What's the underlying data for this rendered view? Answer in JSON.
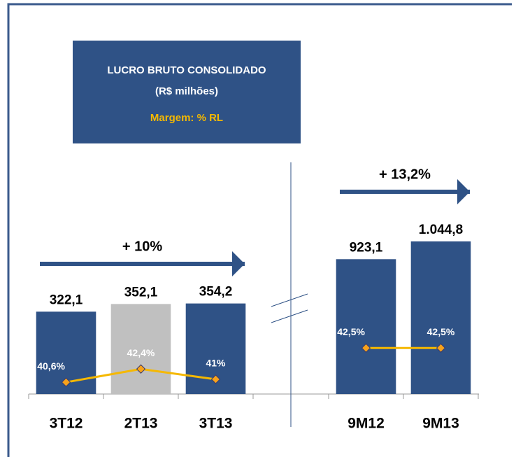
{
  "header": {
    "title": "LUCRO BRUTO CONSOLIDADO",
    "subtitle": "(R$ milhões)",
    "legend": "Margem: % RL"
  },
  "chart_data": [
    {
      "type": "bar",
      "categories": [
        "3T12",
        "2T13",
        "3T13"
      ],
      "values": [
        322.1,
        352.1,
        354.2
      ],
      "value_labels": [
        "322,1",
        "352,1",
        "354,2"
      ],
      "colors": [
        "#2f5286",
        "#c0c0c0",
        "#2f5286"
      ],
      "ylim": [
        0,
        720
      ],
      "annotation": "+ 10%",
      "line": {
        "color": "#f5b800",
        "marker_color": "#f7a21b",
        "axis": "y2",
        "values": [
          40.6,
          42.4,
          41
        ],
        "value_labels": [
          "40,6%",
          "42,4%",
          "41%"
        ]
      },
      "y2lim": [
        39,
        64
      ]
    },
    {
      "type": "bar",
      "categories": [
        "9M12",
        "9M13"
      ],
      "values": [
        923.1,
        1044.8
      ],
      "value_labels": [
        "923,1",
        "1.044,8"
      ],
      "colors": [
        "#2f5286",
        "#2f5286"
      ],
      "ylim": [
        0,
        1260
      ],
      "annotation": "+ 13,2%",
      "line": {
        "color": "#f5b800",
        "marker_color": "#f7a21b",
        "axis": "y2",
        "values": [
          42.5,
          42.5
        ],
        "value_labels": [
          "42,5%",
          "42,5%"
        ]
      },
      "y2lim": [
        0,
        170
      ]
    }
  ]
}
